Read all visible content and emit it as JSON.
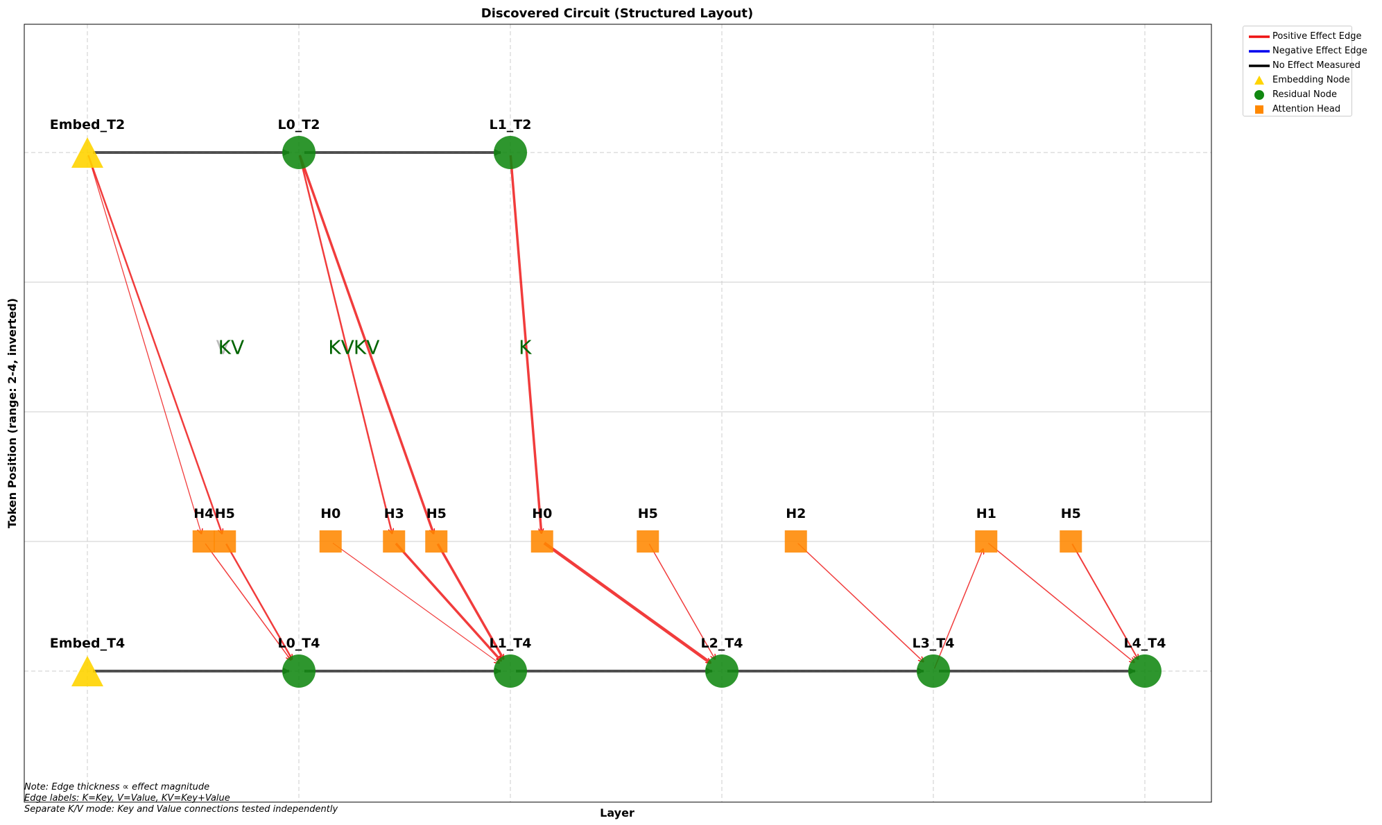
{
  "title": "Discovered Circuit (Structured Layout)",
  "xlabel": "Layer",
  "ylabel": "Token Position (range: 2-4, inverted)",
  "colors": {
    "positive": "#ee1111",
    "negative": "#0000ee",
    "no_effect": "#000000",
    "embedding": "#ffd400",
    "residual": "#118811",
    "attention": "#ff8800",
    "edge_label": "#006400"
  },
  "legend": [
    {
      "type": "line",
      "color": "#ee1111",
      "label": "Positive Effect Edge"
    },
    {
      "type": "line",
      "color": "#0000ee",
      "label": "Negative Effect Edge"
    },
    {
      "type": "line",
      "color": "#000000",
      "label": "No Effect Measured"
    },
    {
      "type": "triangle",
      "color": "#ffd400",
      "label": "Embedding Node"
    },
    {
      "type": "circle",
      "color": "#118811",
      "label": "Residual Node"
    },
    {
      "type": "square",
      "color": "#ff8800",
      "label": "Attention Head"
    }
  ],
  "nodes": [
    {
      "id": "embed_t2",
      "label": "Embed_T2",
      "kind": "embedding",
      "layer": -1,
      "token": 2
    },
    {
      "id": "l0_t2",
      "label": "L0_T2",
      "kind": "residual",
      "layer": 0,
      "token": 2
    },
    {
      "id": "l1_t2",
      "label": "L1_T2",
      "kind": "residual",
      "layer": 1,
      "token": 2
    },
    {
      "id": "embed_t4",
      "label": "Embed_T4",
      "kind": "embedding",
      "layer": -1,
      "token": 4
    },
    {
      "id": "l0_t4",
      "label": "L0_T4",
      "kind": "residual",
      "layer": 0,
      "token": 4
    },
    {
      "id": "l1_t4",
      "label": "L1_T4",
      "kind": "residual",
      "layer": 1,
      "token": 4
    },
    {
      "id": "l2_t4",
      "label": "L2_T4",
      "kind": "residual",
      "layer": 2,
      "token": 4
    },
    {
      "id": "l3_t4",
      "label": "L3_T4",
      "kind": "residual",
      "layer": 3,
      "token": 4
    },
    {
      "id": "l4_t4",
      "label": "L4_T4",
      "kind": "residual",
      "layer": 4,
      "token": 4
    },
    {
      "id": "h4_l0",
      "label": "H4",
      "kind": "attention",
      "layer": -0.45,
      "token": 3.5
    },
    {
      "id": "h5_l0",
      "label": "H5",
      "kind": "attention",
      "layer": -0.35,
      "token": 3.5
    },
    {
      "id": "h0_l1",
      "label": "H0",
      "kind": "attention",
      "layer": 0.15,
      "token": 3.5
    },
    {
      "id": "h3_l1",
      "label": "H3",
      "kind": "attention",
      "layer": 0.45,
      "token": 3.5
    },
    {
      "id": "h5_l1",
      "label": "H5",
      "kind": "attention",
      "layer": 0.65,
      "token": 3.5
    },
    {
      "id": "h0_l2",
      "label": "H0",
      "kind": "attention",
      "layer": 1.15,
      "token": 3.5
    },
    {
      "id": "h5_l2",
      "label": "H5",
      "kind": "attention",
      "layer": 1.65,
      "token": 3.5
    },
    {
      "id": "h2_l3",
      "label": "H2",
      "kind": "attention",
      "layer": 2.35,
      "token": 3.5
    },
    {
      "id": "h1_l4",
      "label": "H1",
      "kind": "attention",
      "layer": 3.25,
      "token": 3.5
    },
    {
      "id": "h5_l4",
      "label": "H5",
      "kind": "attention",
      "layer": 3.65,
      "token": 3.5
    }
  ],
  "edges": [
    {
      "from": "embed_t2",
      "to": "l0_t2",
      "effect": "none",
      "weight": 4
    },
    {
      "from": "l0_t2",
      "to": "l1_t2",
      "effect": "none",
      "weight": 4
    },
    {
      "from": "embed_t4",
      "to": "l0_t4",
      "effect": "none",
      "weight": 4
    },
    {
      "from": "l0_t4",
      "to": "l1_t4",
      "effect": "none",
      "weight": 4
    },
    {
      "from": "l1_t4",
      "to": "l2_t4",
      "effect": "none",
      "weight": 4
    },
    {
      "from": "l2_t4",
      "to": "l3_t4",
      "effect": "none",
      "weight": 4
    },
    {
      "from": "l3_t4",
      "to": "l4_t4",
      "effect": "none",
      "weight": 4
    },
    {
      "from": "embed_t2",
      "to": "h4_l0",
      "effect": "positive",
      "weight": 1.3
    },
    {
      "from": "embed_t2",
      "to": "h5_l0",
      "effect": "positive",
      "weight": 2.5
    },
    {
      "from": "h4_l0",
      "to": "l0_t4",
      "effect": "positive",
      "weight": 1.5
    },
    {
      "from": "h5_l0",
      "to": "l0_t4",
      "effect": "positive",
      "weight": 2.5
    },
    {
      "from": "l0_t2",
      "to": "h3_l1",
      "effect": "positive",
      "weight": 2.5
    },
    {
      "from": "l0_t2",
      "to": "h5_l1",
      "effect": "positive",
      "weight": 3.5
    },
    {
      "from": "h0_l1",
      "to": "l1_t4",
      "effect": "positive",
      "weight": 1.2
    },
    {
      "from": "h3_l1",
      "to": "l1_t4",
      "effect": "positive",
      "weight": 3.5
    },
    {
      "from": "h5_l1",
      "to": "l1_t4",
      "effect": "positive",
      "weight": 3.5
    },
    {
      "from": "l1_t2",
      "to": "h0_l2",
      "effect": "positive",
      "weight": 3.5
    },
    {
      "from": "h0_l2",
      "to": "l2_t4",
      "effect": "positive",
      "weight": 4.5
    },
    {
      "from": "h5_l2",
      "to": "l2_t4",
      "effect": "positive",
      "weight": 1.5
    },
    {
      "from": "h2_l3",
      "to": "l3_t4",
      "effect": "positive",
      "weight": 1.5
    },
    {
      "from": "l3_t4",
      "to": "h1_l4",
      "effect": "positive",
      "weight": 1.5
    },
    {
      "from": "h1_l4",
      "to": "l4_t4",
      "effect": "positive",
      "weight": 1.5
    },
    {
      "from": "h5_l4",
      "to": "l4_t4",
      "effect": "positive",
      "weight": 2
    }
  ],
  "edge_labels": [
    {
      "text": "V",
      "layer": -0.36,
      "token": 2.75,
      "faded": true
    },
    {
      "text": "KV",
      "layer": -0.32,
      "token": 2.75,
      "faded": false
    },
    {
      "text": "KV",
      "layer": 0.2,
      "token": 2.75,
      "faded": false
    },
    {
      "text": "KV",
      "layer": 0.32,
      "token": 2.75,
      "faded": false
    },
    {
      "text": "K",
      "layer": 1.07,
      "token": 2.75,
      "faded": false
    }
  ],
  "note": [
    "Note: Edge thickness ∝ effect magnitude",
    "Edge labels: K=Key, V=Value, KV=Key+Value",
    "Separate K/V mode: Key and Value connections tested independently"
  ]
}
